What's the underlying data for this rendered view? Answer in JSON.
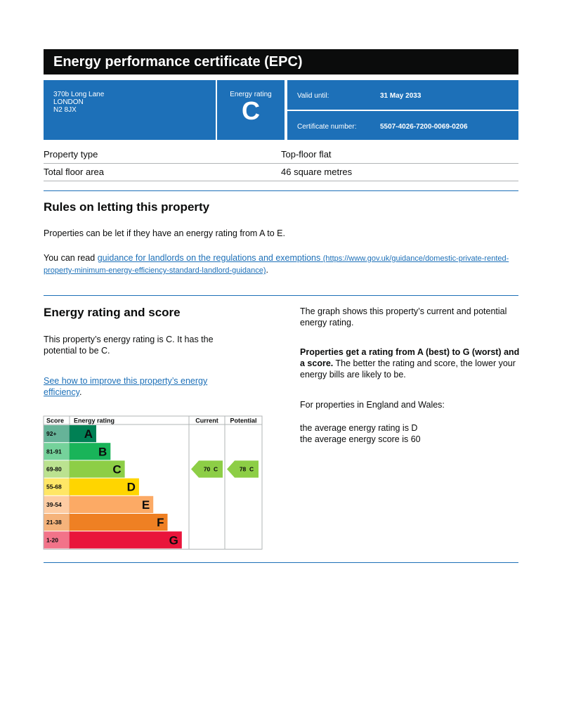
{
  "header": {
    "title": "Energy performance certificate (EPC)"
  },
  "summary": {
    "address": [
      "370b Long Lane",
      "LONDON",
      "N2 8JX"
    ],
    "rating_label": "Energy rating",
    "rating": "C",
    "valid_until_label": "Valid until:",
    "valid_until": "31 May 2033",
    "certificate_number_label": "Certificate number:",
    "certificate_number": "5507-4026-7200-0069-0206"
  },
  "property": {
    "rows": [
      [
        "Property type",
        "Top-floor flat"
      ],
      [
        "Total floor area",
        "46 square metres"
      ]
    ]
  },
  "rules": {
    "heading": "Rules on letting this property",
    "text": "Properties can be let if they have an energy rating from A to E.",
    "link_prefix": "You can read ",
    "link_text": "guidance for landlords on the regulations and exemptions",
    "link_url": "(https://www.gov.uk/guidance/domestic-private-rented-property-minimum-energy-efficiency-standard-landlord-guidance)",
    "link_suffix": "."
  },
  "energy": {
    "heading": "Energy rating and score",
    "text": "This property’s energy rating is C. It has the potential to be C.",
    "link_text": "See how to improve this property’s energy efficiency",
    "link_suffix": ".",
    "graph_text": "The graph shows this property’s current and potential energy rating.",
    "bold_text": "Properties get a rating from A (best) to G (worst) and a score.",
    "rest_text": " The better the rating and score, the lower your energy bills are likely to be.",
    "region_text": "For properties in England and Wales:",
    "average_lines": [
      "the average energy rating is D",
      "the average energy score is 60"
    ],
    "chart": {
      "headers": [
        "Score",
        "Energy rating",
        "Current",
        "Potential"
      ],
      "bands": [
        {
          "score": "92+",
          "letter": "A",
          "color": "#008054"
        },
        {
          "score": "81-91",
          "letter": "B",
          "color": "#19b459"
        },
        {
          "score": "69-80",
          "letter": "C",
          "color": "#8dce46"
        },
        {
          "score": "55-68",
          "letter": "D",
          "color": "#ffd500"
        },
        {
          "score": "39-54",
          "letter": "E",
          "color": "#fcaa65"
        },
        {
          "score": "21-38",
          "letter": "F",
          "color": "#ef8023"
        },
        {
          "score": "1-20",
          "letter": "G",
          "color": "#e9153b"
        }
      ],
      "current": {
        "score": 70,
        "letter": "C"
      },
      "potential": {
        "score": 78,
        "letter": "C"
      }
    }
  }
}
